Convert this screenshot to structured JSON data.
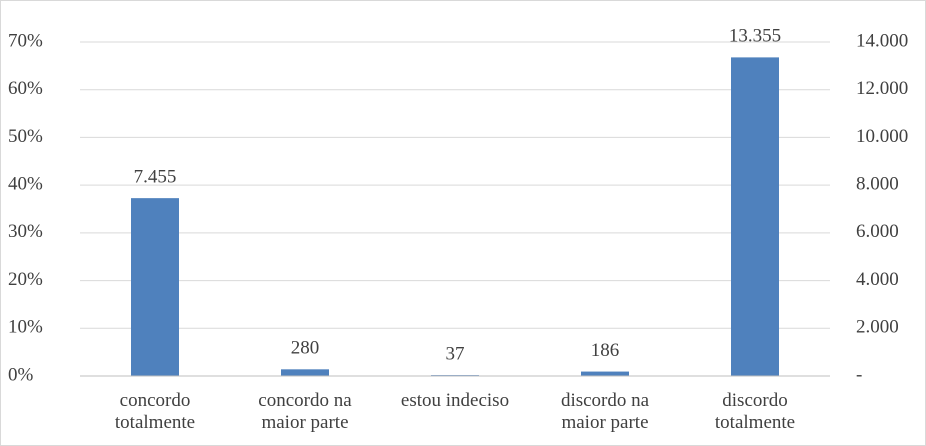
{
  "chart_data": {
    "type": "bar",
    "categories": [
      "concordo totalmente",
      "concordo na maior parte",
      "estou indeciso",
      "discordo na maior parte",
      "discordo totalmente"
    ],
    "series": [
      {
        "color": "#4f81bd",
        "axis": "y2",
        "values": [
          7455,
          280,
          37,
          186,
          13355
        ],
        "value_labels": [
          "7.455",
          "280",
          "37",
          "186",
          "13.355"
        ]
      }
    ],
    "ylim": [
      0,
      70
    ],
    "yticks": [
      {
        "value": 0,
        "label": "0%"
      },
      {
        "value": 10,
        "label": "10%"
      },
      {
        "value": 20,
        "label": "20%"
      },
      {
        "value": 30,
        "label": "30%"
      },
      {
        "value": 40,
        "label": "40%"
      },
      {
        "value": 50,
        "label": "50%"
      },
      {
        "value": 60,
        "label": "60%"
      },
      {
        "value": 70,
        "label": "70%"
      }
    ],
    "y2lim": [
      0,
      14000
    ],
    "y2ticks": [
      {
        "value": 0,
        "label": "-"
      },
      {
        "value": 2000,
        "label": "2.000"
      },
      {
        "value": 4000,
        "label": "4.000"
      },
      {
        "value": 6000,
        "label": "6.000"
      },
      {
        "value": 8000,
        "label": "8.000"
      },
      {
        "value": 10000,
        "label": "10.000"
      },
      {
        "value": 12000,
        "label": "12.000"
      },
      {
        "value": 14000,
        "label": "14.000"
      }
    ],
    "grid": true
  }
}
